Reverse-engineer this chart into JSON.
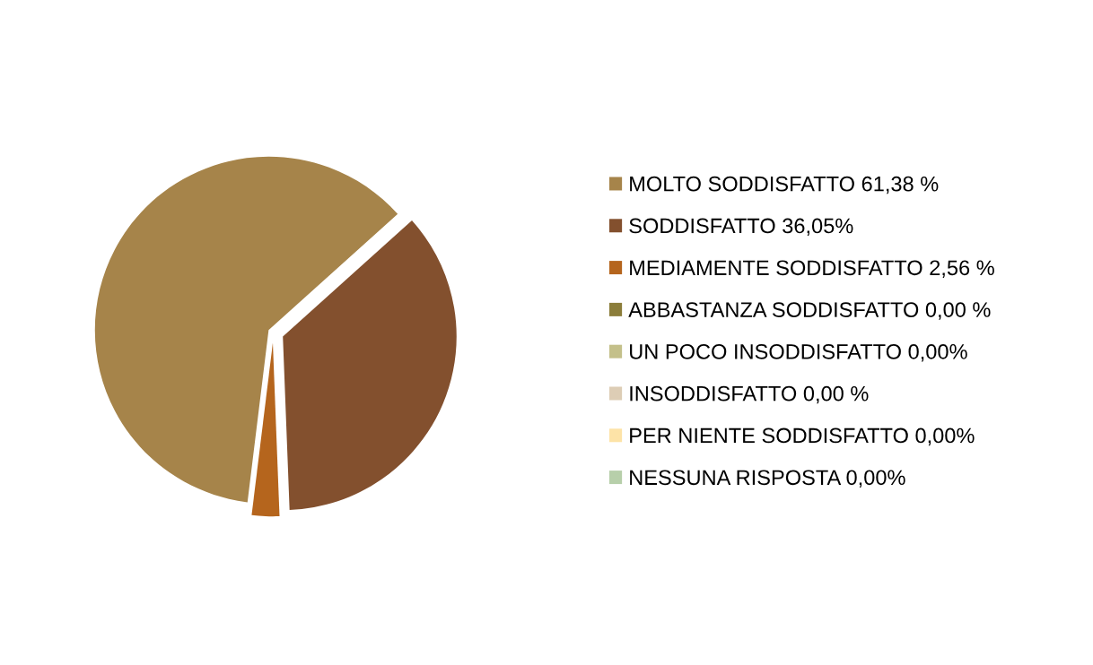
{
  "chart_data": {
    "type": "pie",
    "categories": [
      "MOLTO SODDISFATTO 61,38 %",
      "SODDISFATTO 36,05%",
      "MEDIAMENTE SODDISFATTO 2,56 %",
      "ABBASTANZA SODDISFATTO 0,00 %",
      "UN POCO INSODDISFATTO 0,00%",
      "INSODDISFATTO 0,00 %",
      "PER NIENTE SODDISFATTO 0,00%",
      "NESSUNA RISPOSTA 0,00%"
    ],
    "values": [
      61.38,
      36.05,
      2.56,
      0,
      0,
      0,
      0,
      0
    ],
    "colors": [
      "#a6844a",
      "#83502e",
      "#b5651d",
      "#8b7d3a",
      "#c4c08a",
      "#ddcdb5",
      "#fde3a7",
      "#b7cfaa"
    ],
    "legend": "right"
  }
}
